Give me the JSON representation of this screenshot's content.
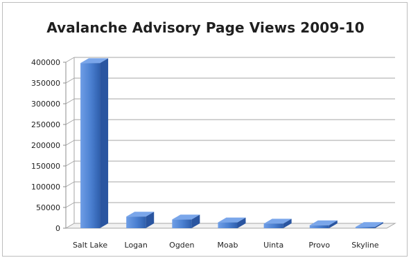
{
  "chart_data": {
    "type": "bar",
    "title": "Avalanche Advisory Page Views 2009-10",
    "xlabel": "",
    "ylabel": "",
    "categories": [
      "Salt Lake",
      "Logan",
      "Ogden",
      "Moab",
      "Uinta",
      "Provo",
      "Skyline"
    ],
    "values": [
      398000,
      28000,
      21000,
      14000,
      11000,
      7000,
      3000
    ],
    "ylim": [
      0,
      400000
    ],
    "yticks": [
      0,
      50000,
      100000,
      150000,
      200000,
      250000,
      300000,
      350000,
      400000
    ],
    "grid": true,
    "legend": "none",
    "bar_color": "#4a7fd0",
    "style": "3d-column"
  }
}
